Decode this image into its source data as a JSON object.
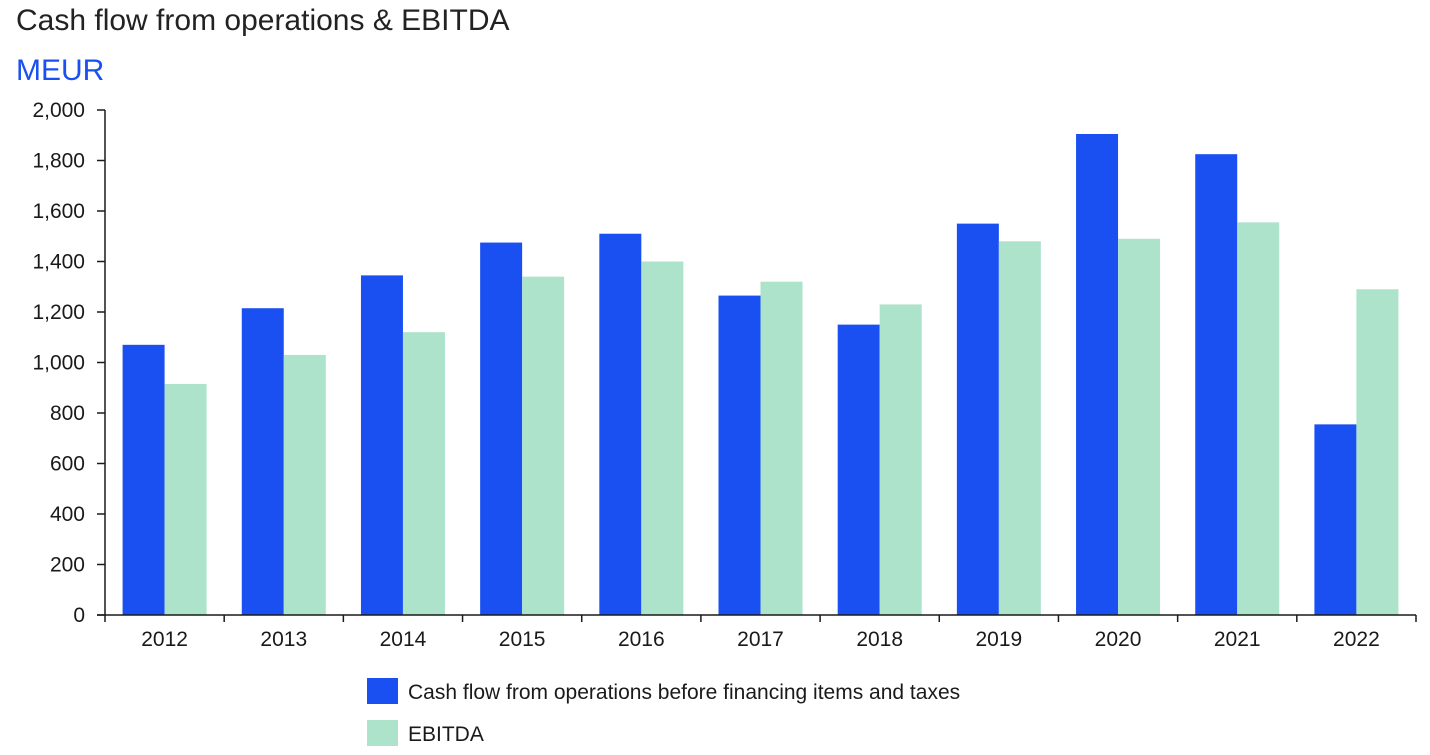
{
  "colors": {
    "cash_flow": "#1a50f2",
    "ebitda": "#ade2cb",
    "unit_text": "#1a50f2",
    "axis": "#1a1a1a"
  },
  "chart_data": {
    "type": "bar",
    "title": "Cash flow from operations & EBITDA",
    "unit": "MEUR",
    "xlabel": "",
    "ylabel": "",
    "categories": [
      "2012",
      "2013",
      "2014",
      "2015",
      "2016",
      "2017",
      "2018",
      "2019",
      "2020",
      "2021",
      "2022"
    ],
    "series": [
      {
        "name": "Cash flow from operations before financing items and taxes",
        "values": [
          1070,
          1215,
          1345,
          1475,
          1510,
          1265,
          1150,
          1550,
          1905,
          1825,
          755
        ]
      },
      {
        "name": "EBITDA",
        "values": [
          915,
          1030,
          1120,
          1340,
          1400,
          1320,
          1230,
          1480,
          1490,
          1555,
          1290
        ]
      }
    ],
    "ylim": [
      0,
      2000
    ],
    "yticks": [
      0,
      200,
      400,
      600,
      800,
      1000,
      1200,
      1400,
      1600,
      1800,
      2000
    ],
    "ytick_labels": [
      "0",
      "200",
      "400",
      "600",
      "800",
      "1,000",
      "1,200",
      "1,400",
      "1,600",
      "1,800",
      "2,000"
    ],
    "grid": false,
    "legend_position": "bottom"
  }
}
